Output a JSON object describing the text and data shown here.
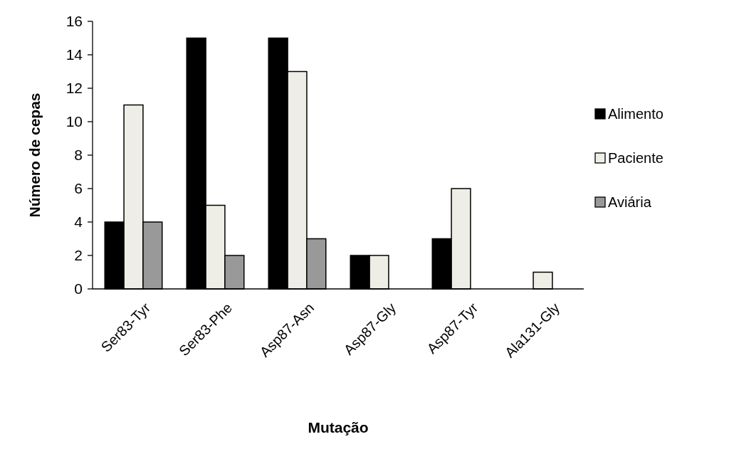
{
  "chart_data": {
    "type": "bar",
    "xlabel": "Mutação",
    "ylabel": "Número de cepas",
    "categories": [
      "Ser83-Tyr",
      "Ser83-Phe",
      "Asp87-Asn",
      "Asp87-Gly",
      "Asp87-Tyr",
      "Ala131-Gly"
    ],
    "series": [
      {
        "name": "Alimento",
        "color": "#000000",
        "values": [
          4,
          15,
          15,
          2,
          3,
          0
        ]
      },
      {
        "name": "Paciente",
        "color": "#eeeee6",
        "values": [
          11,
          5,
          13,
          2,
          6,
          1
        ]
      },
      {
        "name": "Aviária",
        "color": "#999999",
        "values": [
          4,
          2,
          3,
          0,
          0,
          0
        ]
      }
    ],
    "ylim": [
      0,
      16
    ],
    "yticks": [
      0,
      2,
      4,
      6,
      8,
      10,
      12,
      14,
      16
    ],
    "grid": false,
    "legend": "right"
  }
}
